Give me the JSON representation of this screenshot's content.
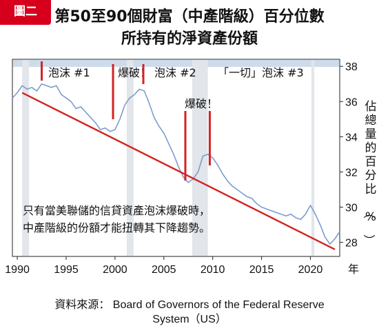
{
  "banner": "圖二",
  "title_line1": "第50至90個財富（中產階級）百分位數",
  "title_line2": "所持有的淨資產份額",
  "source_line1": "資料來源： Board of Governors of the Federal Reserve",
  "source_line2": "System（US）",
  "colors": {
    "banner": "#d6001c",
    "series": "#7d9ccc",
    "trend": "#d42222",
    "marker": "#d42222",
    "band": "#e2e5ea",
    "topband": "#ccdceb"
  },
  "chart_data": {
    "type": "line",
    "ylabel": "佔總量的百分比（%）",
    "xlabel": "年",
    "x_ticks": [
      1990,
      1995,
      2000,
      2005,
      2010,
      2015,
      2020
    ],
    "y_ticks": [
      28,
      30,
      32,
      34,
      36,
      38
    ],
    "xlim": [
      1989.5,
      2023
    ],
    "ylim": [
      27.2,
      38.4
    ],
    "annotation_text": [
      "只有當美聯儲的信貸資產泡沫爆破時，",
      "中產階級的份額才能扭轉其下降趨勢。"
    ],
    "events": [
      {
        "label": "泡沫 #1",
        "x": 1992.5
      },
      {
        "label": "爆破！",
        "x": 1999.8
      },
      {
        "label": "泡沫 #2",
        "x": 2002.9
      },
      {
        "label": "「一切」泡沫 #3",
        "x": null
      },
      {
        "label": "爆破！",
        "x": 2007.2
      },
      {
        "label": "",
        "x": 2009.7
      }
    ],
    "recession_bands": [
      [
        1990.5,
        1991.2
      ],
      [
        2001.2,
        2001.9
      ],
      [
        2007.9,
        2009.5
      ],
      [
        2020.1,
        2020.4
      ]
    ],
    "series": [
      {
        "x": [
          1989.5,
          1990.0,
          1990.5,
          1991.0,
          1991.5,
          1992.0,
          1992.5,
          1993.0,
          1993.5,
          1994.0,
          1994.5,
          1995.0,
          1995.5,
          1996.0,
          1996.5,
          1997.0,
          1997.5,
          1998.0,
          1998.5,
          1999.0,
          1999.5,
          2000.0,
          2000.5,
          2001.0,
          2001.5,
          2002.0,
          2002.5,
          2003.0,
          2003.5,
          2004.0,
          2004.5,
          2005.0,
          2005.5,
          2006.0,
          2006.5,
          2007.0,
          2007.5,
          2008.0,
          2008.5,
          2009.0,
          2009.5,
          2010.0,
          2010.5,
          2011.0,
          2011.5,
          2012.0,
          2012.5,
          2013.0,
          2013.5,
          2014.0,
          2014.5,
          2015.0,
          2015.5,
          2016.0,
          2016.5,
          2017.0,
          2017.5,
          2018.0,
          2018.5,
          2019.0,
          2019.5,
          2020.0,
          2020.5,
          2021.0,
          2021.5,
          2022.0,
          2022.5,
          2023.0
        ],
        "values": [
          36.2,
          36.5,
          36.9,
          36.7,
          36.8,
          36.6,
          37.0,
          36.9,
          36.8,
          36.9,
          36.4,
          36.2,
          36.0,
          35.6,
          35.7,
          35.4,
          35.1,
          34.8,
          34.4,
          34.5,
          34.3,
          34.4,
          35.0,
          35.8,
          36.2,
          36.4,
          36.7,
          36.6,
          35.9,
          35.1,
          34.6,
          34.2,
          33.6,
          33.0,
          32.3,
          31.7,
          31.4,
          31.6,
          32.0,
          32.9,
          33.0,
          32.8,
          32.4,
          31.9,
          31.5,
          31.2,
          31.0,
          30.8,
          30.6,
          30.5,
          30.2,
          30.0,
          29.9,
          29.8,
          29.7,
          29.6,
          29.5,
          29.6,
          29.4,
          29.3,
          29.6,
          30.1,
          29.6,
          29.0,
          28.3,
          27.9,
          28.2,
          28.6
        ]
      }
    ],
    "trend_line": {
      "x": [
        1990.5,
        2022.5
      ],
      "values": [
        36.5,
        27.6
      ]
    }
  }
}
